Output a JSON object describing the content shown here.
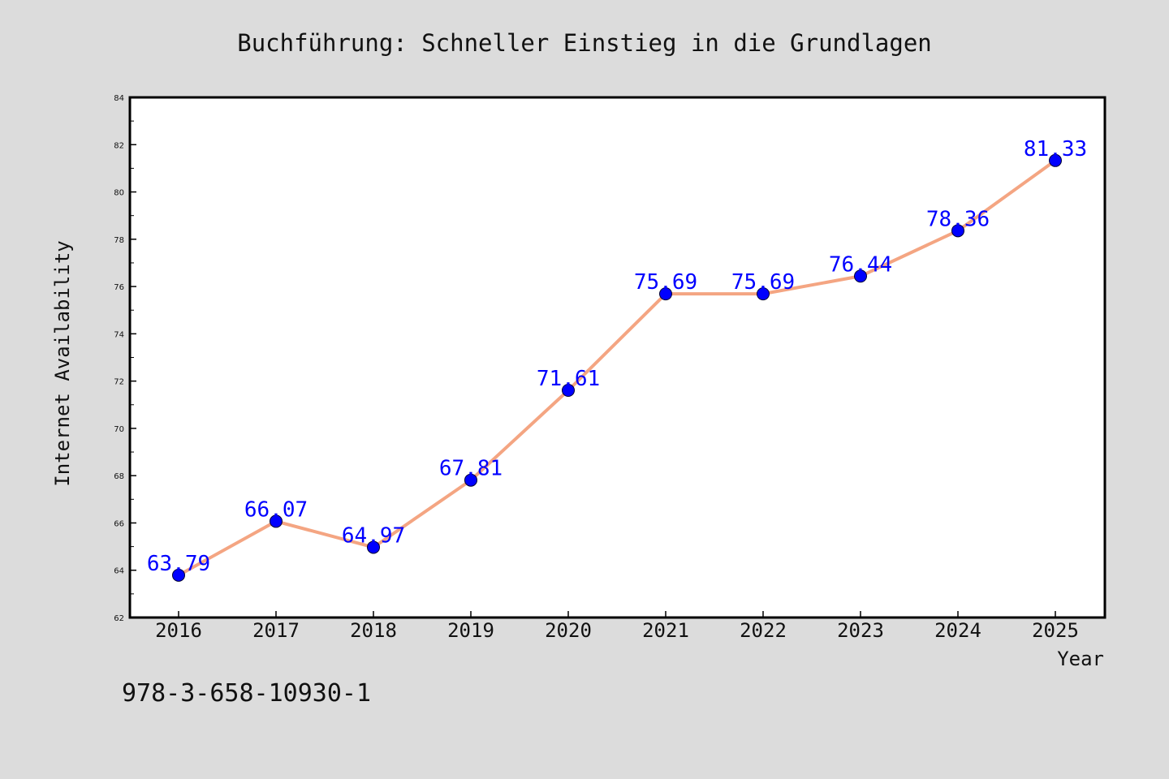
{
  "chart_data": {
    "type": "line",
    "title": "Buchführung: Schneller Einstieg in die Grundlagen",
    "xlabel": "Year",
    "ylabel": "Internet Availability",
    "categories": [
      "2016",
      "2017",
      "2018",
      "2019",
      "2020",
      "2021",
      "2022",
      "2023",
      "2024",
      "2025"
    ],
    "values": [
      63.79,
      66.07,
      64.97,
      67.81,
      71.61,
      75.69,
      75.69,
      76.44,
      78.36,
      81.33
    ],
    "data_labels": [
      "63.79",
      "66.07",
      "64.97",
      "67.81",
      "71.61",
      "75.69",
      "75.69",
      "76.44",
      "78.36",
      "81.33"
    ],
    "ylim": [
      62,
      84
    ],
    "yticks": [
      "62",
      "64",
      "66",
      "68",
      "70",
      "72",
      "74",
      "76",
      "78",
      "80",
      "82",
      "84"
    ],
    "grid": false,
    "line_color": "#f4a582",
    "marker_color": "#0000ff",
    "label_color": "#0000ff"
  },
  "footer": {
    "text": "978-3-658-10930-1"
  }
}
